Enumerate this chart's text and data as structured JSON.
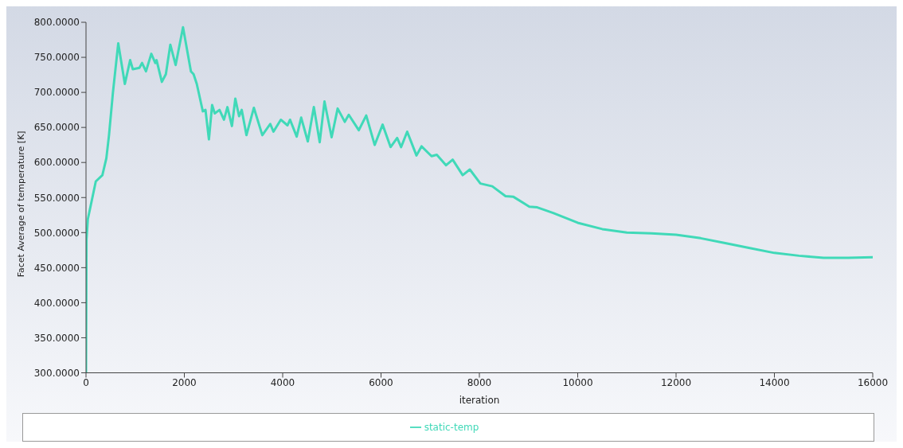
{
  "chart_data": {
    "type": "line",
    "xlabel": "iteration",
    "ylabel": "Facet Average of temperature [K]",
    "xlim": [
      0,
      16000
    ],
    "xticks": [
      0,
      2000,
      4000,
      6000,
      8000,
      10000,
      12000,
      14000,
      16000
    ],
    "ylim": [
      300,
      800
    ],
    "yticks": [
      {
        "value": 300,
        "label": "300.0000"
      },
      {
        "value": 350,
        "label": "350.0000"
      },
      {
        "value": 400,
        "label": "400.0000"
      },
      {
        "value": 450,
        "label": "450.0000"
      },
      {
        "value": 500,
        "label": "500.0000"
      },
      {
        "value": 550,
        "label": "550.0000"
      },
      {
        "value": 600,
        "label": "600.0000"
      },
      {
        "value": 650,
        "label": "650.0000"
      },
      {
        "value": 700,
        "label": "700.0000"
      },
      {
        "value": 750,
        "label": "750.0000"
      },
      {
        "value": 800,
        "label": "800.0000"
      }
    ],
    "grid": false,
    "legend": "bottom",
    "marker": "none",
    "line_style": "solid",
    "series": [
      {
        "name": "static-temp",
        "color": "#40d9b8",
        "x": [
          0,
          10,
          37,
          199,
          333,
          414,
          468,
          548,
          656,
          790,
          898,
          952,
          1086,
          1140,
          1220,
          1328,
          1409,
          1435,
          1543,
          1624,
          1715,
          1823,
          1973,
          2134,
          2188,
          2253,
          2376,
          2430,
          2500,
          2565,
          2618,
          2715,
          2806,
          2876,
          2968,
          3037,
          3113,
          3167,
          3263,
          3414,
          3586,
          3747,
          3812,
          3962,
          4097,
          4150,
          4285,
          4376,
          4511,
          4634,
          4753,
          4850,
          4995,
          5118,
          5263,
          5344,
          5548,
          5699,
          5871,
          6032,
          6194,
          6328,
          6409,
          6532,
          6721,
          6823,
          7027,
          7134,
          7323,
          7457,
          7661,
          7806,
          8021,
          8263,
          8532,
          8694,
          9016,
          9177,
          9500,
          10000,
          10500,
          11000,
          11500,
          12000,
          12500,
          13000,
          13500,
          14000,
          14500,
          15000,
          15500,
          16000
        ],
        "values": [
          300,
          490,
          519,
          573,
          582,
          606,
          639,
          700,
          770,
          712,
          746,
          733,
          735,
          742,
          730,
          755,
          742,
          746,
          715,
          726,
          768,
          739,
          793,
          730,
          726,
          712,
          673,
          675,
          633,
          682,
          670,
          675,
          661,
          679,
          652,
          691,
          666,
          675,
          639,
          678,
          639,
          655,
          644,
          661,
          653,
          661,
          637,
          664,
          630,
          679,
          629,
          687,
          636,
          677,
          658,
          668,
          646,
          667,
          625,
          654,
          622,
          635,
          622,
          644,
          610,
          623,
          609,
          611,
          596,
          604,
          582,
          590,
          570,
          566,
          552,
          551,
          537,
          536,
          528,
          514,
          505,
          500,
          499,
          497,
          492,
          485,
          478,
          471,
          467,
          464,
          464,
          465
        ]
      }
    ]
  }
}
